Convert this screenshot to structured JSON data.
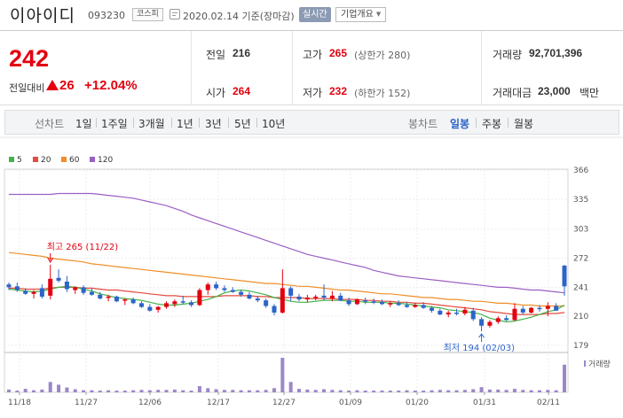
{
  "header": {
    "name": "이아이디",
    "code": "093230",
    "market": "코스피",
    "date": "2020.02.14 기준(장마감)",
    "realtime": "실시간",
    "overview": "기업개요"
  },
  "price": {
    "current": "242",
    "change_label": "전일대비",
    "change": "26",
    "change_pct": "+12.04%"
  },
  "stats": {
    "prev_label": "전일",
    "prev": "216",
    "open_label": "시가",
    "open": "264",
    "high_label": "고가",
    "high": "265",
    "high_limit": "(상한가 280)",
    "low_label": "저가",
    "low": "232",
    "low_limit": "(하한가 152)",
    "volume_label": "거래량",
    "volume": "92,701,396",
    "amount_label": "거래대금",
    "amount": "23,000",
    "amount_unit": "백만"
  },
  "toolbar": {
    "line_label": "선차트",
    "periods": [
      "1일",
      "1주일",
      "3개월",
      "1년",
      "3년",
      "5년",
      "10년"
    ],
    "candle_label": "봉차트",
    "candles": [
      "일봉",
      "주봉",
      "월봉"
    ],
    "active_candle": "일봉"
  },
  "colors": {
    "up": "#e3000f",
    "down": "#2c64c8",
    "ma5": "#43b349",
    "ma20": "#e34b3f",
    "ma60": "#ef8e28",
    "ma120": "#9b5fc4",
    "volume": "#9b87c7"
  },
  "chart_data": {
    "type": "candlestick",
    "legend": [
      "5",
      "20",
      "60",
      "120"
    ],
    "y_ticks": [
      366,
      335,
      303,
      272,
      241,
      210,
      179
    ],
    "ylim": [
      179,
      366
    ],
    "x_ticks": [
      "11/18",
      "11/27",
      "12/06",
      "12/17",
      "12/27",
      "01/09",
      "01/20",
      "01/31",
      "02/11"
    ],
    "volume_label": "거래량",
    "annotations": {
      "high": {
        "text": "최고 265 (11/22)",
        "value": 265
      },
      "low": {
        "text": "최저 194 (02/03)",
        "value": 194
      }
    },
    "candles": [
      {
        "o": 244,
        "h": 246,
        "l": 238,
        "c": 241
      },
      {
        "o": 242,
        "h": 246,
        "l": 236,
        "c": 238
      },
      {
        "o": 237,
        "h": 240,
        "l": 233,
        "c": 234
      },
      {
        "o": 234,
        "h": 238,
        "l": 229,
        "c": 236
      },
      {
        "o": 240,
        "h": 244,
        "l": 229,
        "c": 231
      },
      {
        "o": 232,
        "h": 265,
        "l": 228,
        "c": 250
      },
      {
        "o": 251,
        "h": 260,
        "l": 246,
        "c": 248
      },
      {
        "o": 247,
        "h": 253,
        "l": 236,
        "c": 239
      },
      {
        "o": 238,
        "h": 242,
        "l": 234,
        "c": 241
      },
      {
        "o": 241,
        "h": 243,
        "l": 233,
        "c": 235
      },
      {
        "o": 236,
        "h": 240,
        "l": 232,
        "c": 233
      },
      {
        "o": 233,
        "h": 236,
        "l": 228,
        "c": 229
      },
      {
        "o": 230,
        "h": 233,
        "l": 226,
        "c": 231
      },
      {
        "o": 231,
        "h": 232,
        "l": 225,
        "c": 226
      },
      {
        "o": 227,
        "h": 229,
        "l": 222,
        "c": 228
      },
      {
        "o": 228,
        "h": 230,
        "l": 223,
        "c": 224
      },
      {
        "o": 224,
        "h": 226,
        "l": 219,
        "c": 220
      },
      {
        "o": 220,
        "h": 223,
        "l": 215,
        "c": 216
      },
      {
        "o": 217,
        "h": 221,
        "l": 214,
        "c": 220
      },
      {
        "o": 220,
        "h": 226,
        "l": 218,
        "c": 224
      },
      {
        "o": 223,
        "h": 228,
        "l": 220,
        "c": 226
      },
      {
        "o": 226,
        "h": 232,
        "l": 223,
        "c": 225
      },
      {
        "o": 225,
        "h": 227,
        "l": 220,
        "c": 222
      },
      {
        "o": 222,
        "h": 240,
        "l": 221,
        "c": 238
      },
      {
        "o": 238,
        "h": 246,
        "l": 233,
        "c": 244
      },
      {
        "o": 244,
        "h": 247,
        "l": 238,
        "c": 240
      },
      {
        "o": 240,
        "h": 243,
        "l": 236,
        "c": 238
      },
      {
        "o": 238,
        "h": 241,
        "l": 235,
        "c": 236
      },
      {
        "o": 236,
        "h": 238,
        "l": 231,
        "c": 233
      },
      {
        "o": 233,
        "h": 236,
        "l": 228,
        "c": 229
      },
      {
        "o": 229,
        "h": 232,
        "l": 225,
        "c": 227
      },
      {
        "o": 227,
        "h": 229,
        "l": 219,
        "c": 221
      },
      {
        "o": 221,
        "h": 223,
        "l": 211,
        "c": 214
      },
      {
        "o": 214,
        "h": 260,
        "l": 213,
        "c": 240
      },
      {
        "o": 240,
        "h": 242,
        "l": 226,
        "c": 232
      },
      {
        "o": 231,
        "h": 234,
        "l": 226,
        "c": 228
      },
      {
        "o": 228,
        "h": 233,
        "l": 225,
        "c": 230
      },
      {
        "o": 230,
        "h": 233,
        "l": 227,
        "c": 231
      },
      {
        "o": 232,
        "h": 244,
        "l": 227,
        "c": 230
      },
      {
        "o": 229,
        "h": 237,
        "l": 226,
        "c": 232
      },
      {
        "o": 232,
        "h": 235,
        "l": 226,
        "c": 227
      },
      {
        "o": 227,
        "h": 230,
        "l": 221,
        "c": 223
      },
      {
        "o": 223,
        "h": 229,
        "l": 222,
        "c": 228
      },
      {
        "o": 227,
        "h": 230,
        "l": 223,
        "c": 226
      },
      {
        "o": 226,
        "h": 229,
        "l": 223,
        "c": 225
      },
      {
        "o": 225,
        "h": 228,
        "l": 222,
        "c": 223
      },
      {
        "o": 223,
        "h": 226,
        "l": 220,
        "c": 224
      },
      {
        "o": 224,
        "h": 227,
        "l": 221,
        "c": 222
      },
      {
        "o": 222,
        "h": 225,
        "l": 219,
        "c": 220
      },
      {
        "o": 220,
        "h": 224,
        "l": 219,
        "c": 222
      },
      {
        "o": 222,
        "h": 225,
        "l": 218,
        "c": 219
      },
      {
        "o": 219,
        "h": 221,
        "l": 214,
        "c": 216
      },
      {
        "o": 216,
        "h": 218,
        "l": 211,
        "c": 212
      },
      {
        "o": 212,
        "h": 216,
        "l": 209,
        "c": 214
      },
      {
        "o": 214,
        "h": 218,
        "l": 211,
        "c": 213
      },
      {
        "o": 213,
        "h": 220,
        "l": 211,
        "c": 217
      },
      {
        "o": 216,
        "h": 219,
        "l": 205,
        "c": 207
      },
      {
        "o": 207,
        "h": 209,
        "l": 194,
        "c": 200
      },
      {
        "o": 200,
        "h": 206,
        "l": 198,
        "c": 204
      },
      {
        "o": 204,
        "h": 210,
        "l": 202,
        "c": 208
      },
      {
        "o": 208,
        "h": 211,
        "l": 205,
        "c": 206
      },
      {
        "o": 206,
        "h": 224,
        "l": 205,
        "c": 218
      },
      {
        "o": 218,
        "h": 221,
        "l": 212,
        "c": 214
      },
      {
        "o": 214,
        "h": 220,
        "l": 213,
        "c": 219
      },
      {
        "o": 219,
        "h": 222,
        "l": 215,
        "c": 218
      },
      {
        "o": 218,
        "h": 225,
        "l": 210,
        "c": 221
      },
      {
        "o": 221,
        "h": 224,
        "l": 216,
        "c": 216
      },
      {
        "o": 264,
        "h": 265,
        "l": 232,
        "c": 242
      }
    ],
    "volumes": [
      8,
      5,
      10,
      6,
      8,
      30,
      22,
      14,
      9,
      6,
      6,
      5,
      6,
      5,
      5,
      6,
      7,
      6,
      7,
      7,
      8,
      6,
      5,
      18,
      12,
      9,
      7,
      7,
      6,
      6,
      6,
      7,
      12,
      100,
      30,
      10,
      8,
      7,
      9,
      7,
      6,
      5,
      6,
      5,
      5,
      5,
      5,
      5,
      6,
      5,
      5,
      6,
      7,
      6,
      6,
      7,
      9,
      15,
      8,
      8,
      7,
      10,
      7,
      6,
      6,
      7,
      6,
      80
    ],
    "ma5": [
      239,
      238,
      237,
      236,
      237,
      239,
      241,
      242,
      241,
      239,
      237,
      234,
      232,
      230,
      229,
      228,
      227,
      225,
      223,
      222,
      222,
      223,
      224,
      226,
      228,
      231,
      235,
      237,
      238,
      237,
      235,
      233,
      230,
      228,
      226,
      225,
      225,
      226,
      227,
      227,
      227,
      226,
      226,
      225,
      225,
      225,
      224,
      224,
      223,
      222,
      221,
      220,
      219,
      217,
      216,
      215,
      214,
      212,
      208,
      206,
      204,
      205,
      207,
      209,
      212,
      215,
      217,
      222
    ],
    "ma20": [
      240,
      240,
      239,
      239,
      239,
      240,
      241,
      241,
      241,
      240,
      240,
      239,
      238,
      238,
      237,
      236,
      235,
      234,
      233,
      232,
      232,
      231,
      231,
      231,
      231,
      231,
      232,
      232,
      232,
      232,
      231,
      231,
      230,
      230,
      230,
      230,
      229,
      229,
      229,
      229,
      228,
      228,
      228,
      227,
      227,
      226,
      226,
      225,
      225,
      224,
      224,
      223,
      222,
      221,
      220,
      219,
      218,
      217,
      215,
      214,
      213,
      212,
      212,
      212,
      212,
      213,
      213,
      214
    ],
    "ma60": [
      278,
      277,
      276,
      275,
      274,
      272,
      271,
      270,
      269,
      268,
      266,
      265,
      264,
      263,
      262,
      261,
      260,
      259,
      258,
      257,
      256,
      255,
      254,
      253,
      252,
      251,
      250,
      249,
      248,
      247,
      246,
      245,
      245,
      244,
      243,
      242,
      242,
      241,
      240,
      239,
      238,
      238,
      237,
      236,
      235,
      234,
      234,
      233,
      232,
      231,
      230,
      230,
      229,
      228,
      228,
      227,
      226,
      226,
      225,
      224,
      224,
      223,
      222,
      222,
      221,
      221,
      221,
      221
    ],
    "ma120": [
      340,
      340,
      340,
      340,
      340,
      340,
      341,
      341,
      341,
      341,
      341,
      340,
      339,
      338,
      337,
      336,
      334,
      332,
      330,
      328,
      325,
      322,
      318,
      315,
      312,
      309,
      306,
      303,
      300,
      297,
      294,
      291,
      288,
      285,
      282,
      279,
      276,
      274,
      272,
      270,
      268,
      266,
      264,
      262,
      259,
      257,
      255,
      253,
      252,
      251,
      250,
      249,
      248,
      247,
      246,
      245,
      244,
      243,
      242,
      241,
      241,
      240,
      239,
      238,
      238,
      237,
      236,
      235
    ]
  }
}
